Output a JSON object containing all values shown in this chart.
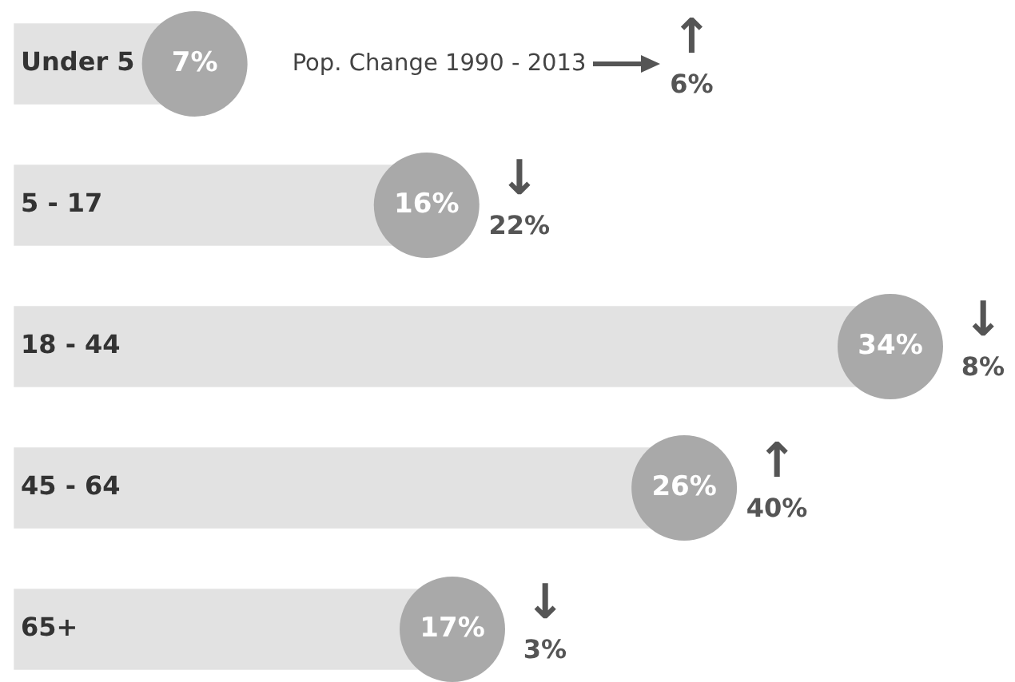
{
  "chart_data": {
    "type": "lollipop",
    "orientation": "horizontal",
    "categories": [
      "Under 5",
      "5 - 17",
      "18 - 44",
      "45 - 64",
      "65+"
    ],
    "values": [
      7,
      16,
      34,
      26,
      17
    ],
    "value_labels": [
      "7%",
      "16%",
      "34%",
      "26%",
      "17%"
    ],
    "color": "#a9a9a9",
    "tick_labels": "y",
    "grid": false,
    "legend": false,
    "annotations": [
      "Pop. Change 1990 - 2013",
      "↑",
      "6%",
      "↓",
      "22%",
      "↓",
      "8%",
      "↑",
      "40%",
      "↓",
      "3%"
    ]
  }
}
